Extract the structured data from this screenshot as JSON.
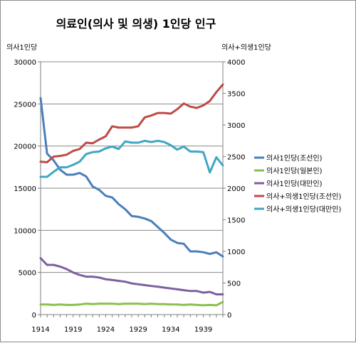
{
  "chart_data": {
    "type": "line",
    "title": "의료인(의사 및 의생) 1인당 인구",
    "ylabel_left": "의사1인당",
    "ylabel_right": "의사+의생1인당",
    "x_ticks": [
      "1914",
      "1919",
      "1924",
      "1929",
      "1934",
      "1939"
    ],
    "y_left_ticks": [
      "0",
      "5000",
      "10000",
      "15000",
      "20000",
      "25000",
      "30000"
    ],
    "y_right_ticks": [
      "0",
      "500",
      "1000",
      "1500",
      "2000",
      "2500",
      "3000",
      "3500",
      "4000"
    ],
    "xlim": [
      1914,
      1942
    ],
    "ylim_left": [
      0,
      30000
    ],
    "ylim_right": [
      0,
      4000
    ],
    "grid": "horizontal",
    "legend_position": "right",
    "x": [
      1914,
      1915,
      1916,
      1917,
      1918,
      1919,
      1920,
      1921,
      1922,
      1923,
      1924,
      1925,
      1926,
      1927,
      1928,
      1929,
      1930,
      1931,
      1932,
      1933,
      1934,
      1935,
      1936,
      1937,
      1938,
      1939,
      1940,
      1941,
      1942
    ],
    "series": [
      {
        "name": "의사1인당(조선인)",
        "axis": "left",
        "color": "#4a7ebb",
        "values": [
          25700,
          19100,
          18300,
          17200,
          16600,
          16600,
          16800,
          16400,
          15200,
          14800,
          14100,
          13900,
          13100,
          12500,
          11700,
          11600,
          11400,
          11100,
          10400,
          9700,
          8900,
          8500,
          8400,
          7500,
          7500,
          7400,
          7200,
          7400,
          6900
        ]
      },
      {
        "name": "의사1인당(일본인)",
        "axis": "left",
        "color": "#8cbf4d",
        "values": [
          1200,
          1200,
          1150,
          1200,
          1150,
          1150,
          1200,
          1300,
          1250,
          1300,
          1300,
          1300,
          1250,
          1300,
          1300,
          1300,
          1250,
          1300,
          1250,
          1250,
          1200,
          1200,
          1150,
          1200,
          1150,
          1100,
          1150,
          1100,
          1500
        ]
      },
      {
        "name": "의사1인당(대만인)",
        "axis": "left",
        "color": "#7d5fa0",
        "values": [
          6700,
          5900,
          5900,
          5700,
          5400,
          5000,
          4700,
          4500,
          4500,
          4400,
          4200,
          4100,
          4000,
          3900,
          3700,
          3600,
          3500,
          3400,
          3300,
          3200,
          3100,
          3000,
          2900,
          2800,
          2800,
          2600,
          2700,
          2400,
          2400
        ]
      },
      {
        "name": "의사+의생1인당(조선인)",
        "axis": "right",
        "color": "#be4b48",
        "values": [
          2420,
          2410,
          2500,
          2510,
          2530,
          2590,
          2620,
          2720,
          2710,
          2770,
          2820,
          2980,
          2960,
          2960,
          2960,
          2980,
          3120,
          3150,
          3190,
          3190,
          3180,
          3250,
          3340,
          3290,
          3270,
          3310,
          3380,
          3520,
          3640
        ]
      },
      {
        "name": "의사+의생1인당(대만인)",
        "axis": "right",
        "color": "#3fa7c3",
        "values": [
          2180,
          2180,
          2260,
          2330,
          2330,
          2370,
          2420,
          2540,
          2570,
          2580,
          2630,
          2660,
          2620,
          2740,
          2720,
          2720,
          2750,
          2730,
          2750,
          2730,
          2680,
          2610,
          2660,
          2580,
          2580,
          2570,
          2250,
          2490,
          2360
        ]
      }
    ]
  }
}
